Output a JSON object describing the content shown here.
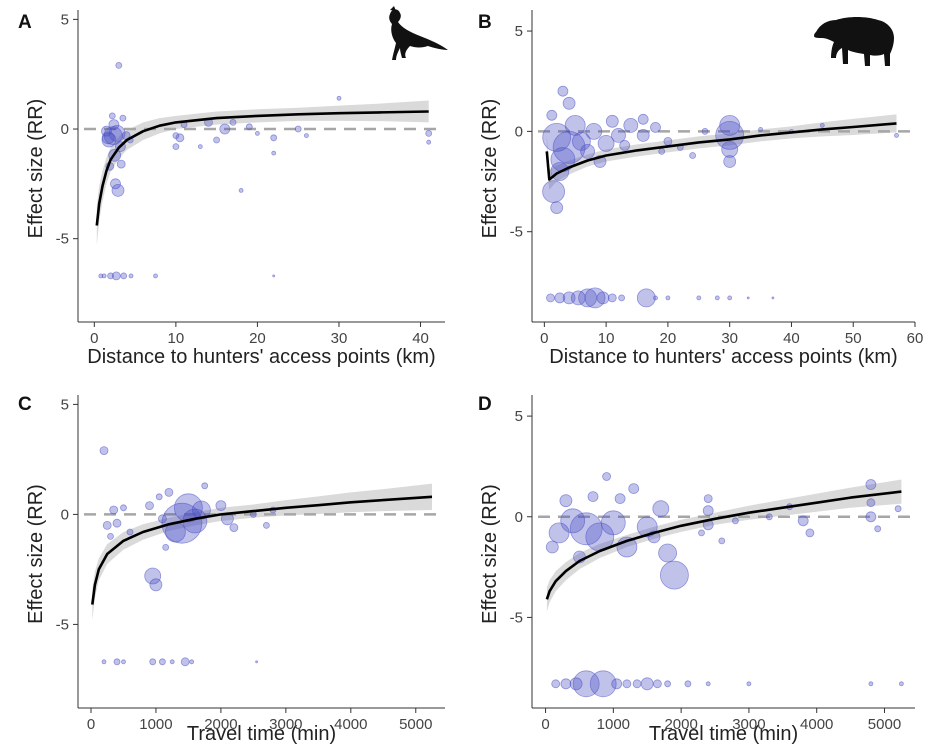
{
  "figure": {
    "colors": {
      "points": "#4b4fc4",
      "fit": "#000000",
      "ci_band": "#d3d3d3",
      "reference": "#a6a6a6"
    },
    "icons": {
      "bird": "curassow-silhouette-icon",
      "tapir": "tapir-silhouette-icon"
    }
  },
  "chart_data": [
    {
      "panel": "A",
      "type": "scatter",
      "icon": "curassow-silhouette-icon",
      "xlabel": "Distance to hunters' access points (km)",
      "ylabel": "Effect size (RR)",
      "xlim": [
        -2,
        43
      ],
      "ylim": [
        -8.8,
        5.2
      ],
      "xticks": [
        0,
        10,
        20,
        30,
        40
      ],
      "yticks": [
        5,
        0,
        -5
      ],
      "grid": false,
      "reference_line_y": 0,
      "fit": [
        [
          0.3,
          -4.4
        ],
        [
          0.6,
          -3.4
        ],
        [
          1,
          -2.6
        ],
        [
          1.5,
          -1.9
        ],
        [
          2,
          -1.4
        ],
        [
          3,
          -0.85
        ],
        [
          4,
          -0.5
        ],
        [
          6,
          -0.1
        ],
        [
          8,
          0.15
        ],
        [
          10,
          0.3
        ],
        [
          15,
          0.5
        ],
        [
          20,
          0.6
        ],
        [
          25,
          0.67
        ],
        [
          30,
          0.72
        ],
        [
          35,
          0.76
        ],
        [
          41,
          0.8
        ]
      ],
      "ci_halfwidth": [
        0.9,
        0.8,
        0.7,
        0.6,
        0.55,
        0.5,
        0.45,
        0.4,
        0.35,
        0.3,
        0.3,
        0.3,
        0.3,
        0.35,
        0.4,
        0.5
      ],
      "points": [
        [
          2.3,
          -0.3,
          9
        ],
        [
          1.8,
          -0.5,
          7
        ],
        [
          2.8,
          -0.2,
          8
        ],
        [
          2.5,
          -1.2,
          6
        ],
        [
          3.2,
          -0.8,
          5
        ],
        [
          1.5,
          -0.1,
          5
        ],
        [
          2.9,
          -2.8,
          6
        ],
        [
          2.6,
          -2.5,
          5
        ],
        [
          3.0,
          2.9,
          3
        ],
        [
          2.2,
          0.6,
          3
        ],
        [
          3.5,
          0.5,
          3
        ],
        [
          1.9,
          -1.7,
          4
        ],
        [
          2.0,
          -6.7,
          3
        ],
        [
          2.7,
          -6.7,
          4
        ],
        [
          3.6,
          -6.7,
          3
        ],
        [
          1.2,
          -6.7,
          2
        ],
        [
          0.8,
          -6.7,
          2
        ],
        [
          4.5,
          -6.7,
          2
        ],
        [
          7.5,
          -6.7,
          2
        ],
        [
          3.9,
          -0.3,
          4
        ],
        [
          4.4,
          -0.5,
          3
        ],
        [
          1.7,
          -0.4,
          6
        ],
        [
          2.4,
          0.2,
          5
        ],
        [
          3.3,
          -1.6,
          4
        ],
        [
          10,
          -0.3,
          3
        ],
        [
          10,
          -0.8,
          3
        ],
        [
          10.5,
          -0.4,
          4
        ],
        [
          11,
          0.2,
          3
        ],
        [
          14,
          0.3,
          4
        ],
        [
          15,
          -0.5,
          3
        ],
        [
          16,
          0.0,
          5
        ],
        [
          19,
          0.1,
          3
        ],
        [
          22,
          -0.4,
          3
        ],
        [
          22,
          -1.1,
          2
        ],
        [
          22,
          -6.7,
          1
        ],
        [
          25,
          0.0,
          3
        ],
        [
          26,
          -0.3,
          2
        ],
        [
          30,
          1.4,
          2
        ],
        [
          41,
          -0.2,
          3
        ],
        [
          41,
          -0.6,
          2
        ],
        [
          20,
          -0.2,
          2
        ],
        [
          18,
          -2.8,
          2
        ],
        [
          13,
          -0.8,
          2
        ],
        [
          17,
          0.3,
          3
        ]
      ]
    },
    {
      "panel": "B",
      "type": "scatter",
      "icon": "tapir-silhouette-icon",
      "xlabel": "Distance to hunters' access points (km)",
      "ylabel": "Effect size (RR)",
      "xlim": [
        -2,
        60
      ],
      "ylim": [
        -9.5,
        5.8
      ],
      "xticks": [
        0,
        10,
        20,
        30,
        40,
        50,
        60
      ],
      "yticks": [
        5,
        0,
        -5
      ],
      "grid": false,
      "reference_line_y": 0,
      "fit": [
        [
          0.4,
          -1.0
        ],
        [
          0.8,
          -2.4
        ],
        [
          2,
          -2.1
        ],
        [
          4,
          -1.8
        ],
        [
          7,
          -1.45
        ],
        [
          10,
          -1.2
        ],
        [
          15,
          -0.95
        ],
        [
          20,
          -0.75
        ],
        [
          25,
          -0.55
        ],
        [
          30,
          -0.4
        ],
        [
          35,
          -0.2
        ],
        [
          40,
          -0.05
        ],
        [
          45,
          0.1
        ],
        [
          50,
          0.22
        ],
        [
          57,
          0.4
        ]
      ],
      "ci_halfwidth": [
        0.8,
        0.5,
        0.4,
        0.35,
        0.3,
        0.3,
        0.3,
        0.3,
        0.3,
        0.3,
        0.3,
        0.3,
        0.35,
        0.4,
        0.45
      ],
      "points": [
        [
          2,
          -0.3,
          14
        ],
        [
          4,
          -0.8,
          16
        ],
        [
          3,
          -1.4,
          12
        ],
        [
          5,
          0.3,
          10
        ],
        [
          2.5,
          -2.0,
          9
        ],
        [
          1.5,
          -3.0,
          11
        ],
        [
          6,
          -0.5,
          9
        ],
        [
          8,
          0.0,
          8
        ],
        [
          10,
          -0.6,
          8
        ],
        [
          12,
          -0.2,
          7
        ],
        [
          14,
          0.3,
          7
        ],
        [
          16,
          -0.2,
          6
        ],
        [
          4,
          1.4,
          6
        ],
        [
          3,
          2.0,
          5
        ],
        [
          1.2,
          0.8,
          5
        ],
        [
          2,
          -3.8,
          6
        ],
        [
          7,
          -1.0,
          7
        ],
        [
          9,
          -1.5,
          6
        ],
        [
          11,
          0.5,
          6
        ],
        [
          13,
          -0.7,
          5
        ],
        [
          30,
          -0.2,
          14
        ],
        [
          30,
          0.3,
          10
        ],
        [
          30,
          -0.9,
          8
        ],
        [
          30,
          -1.5,
          6
        ],
        [
          22,
          -0.8,
          3
        ],
        [
          24,
          -1.2,
          3
        ],
        [
          26,
          0.0,
          3
        ],
        [
          35,
          0.1,
          2
        ],
        [
          40,
          0.0,
          2
        ],
        [
          45,
          0.3,
          2
        ],
        [
          57,
          -0.2,
          2
        ],
        [
          20,
          -0.5,
          4
        ],
        [
          18,
          0.2,
          5
        ],
        [
          16,
          0.6,
          5
        ],
        [
          19,
          -1.0,
          3
        ],
        [
          1,
          -8.3,
          4
        ],
        [
          2.5,
          -8.3,
          5
        ],
        [
          4,
          -8.3,
          6
        ],
        [
          5.5,
          -8.3,
          7
        ],
        [
          7,
          -8.3,
          9
        ],
        [
          8.2,
          -8.3,
          10
        ],
        [
          9.5,
          -8.3,
          6
        ],
        [
          11,
          -8.3,
          4
        ],
        [
          12.5,
          -8.3,
          3
        ],
        [
          16.5,
          -8.3,
          9
        ],
        [
          18,
          -8.3,
          2
        ],
        [
          20,
          -8.3,
          2
        ],
        [
          25,
          -8.3,
          2
        ],
        [
          28,
          -8.3,
          2
        ],
        [
          30,
          -8.3,
          2
        ],
        [
          33,
          -8.3,
          1
        ],
        [
          37,
          -8.3,
          1
        ]
      ]
    },
    {
      "panel": "C",
      "type": "scatter",
      "xlabel": "Travel time (min)",
      "ylabel": "Effect size (RR)",
      "xlim": [
        -200,
        5450
      ],
      "ylim": [
        -8.8,
        5.2
      ],
      "xticks": [
        0,
        1000,
        2000,
        3000,
        4000,
        5000
      ],
      "yticks": [
        5,
        0,
        -5
      ],
      "grid": false,
      "reference_line_y": 0,
      "fit": [
        [
          20,
          -4.1
        ],
        [
          60,
          -3.2
        ],
        [
          120,
          -2.5
        ],
        [
          250,
          -1.8
        ],
        [
          500,
          -1.2
        ],
        [
          800,
          -0.8
        ],
        [
          1200,
          -0.45
        ],
        [
          1600,
          -0.2
        ],
        [
          2000,
          0.0
        ],
        [
          2500,
          0.15
        ],
        [
          3000,
          0.3
        ],
        [
          3500,
          0.42
        ],
        [
          4000,
          0.55
        ],
        [
          4500,
          0.65
        ],
        [
          5250,
          0.8
        ]
      ],
      "ci_halfwidth": [
        0.7,
        0.6,
        0.5,
        0.45,
        0.4,
        0.35,
        0.3,
        0.3,
        0.3,
        0.3,
        0.35,
        0.4,
        0.45,
        0.5,
        0.6
      ],
      "points": [
        [
          1400,
          -0.4,
          20
        ],
        [
          1500,
          0.3,
          14
        ],
        [
          1600,
          -0.3,
          12
        ],
        [
          1300,
          -0.8,
          10
        ],
        [
          1700,
          0.2,
          9
        ],
        [
          950,
          -2.8,
          8
        ],
        [
          1000,
          -3.2,
          6
        ],
        [
          200,
          2.9,
          4
        ],
        [
          250,
          -0.5,
          4
        ],
        [
          350,
          0.2,
          4
        ],
        [
          400,
          -0.4,
          4
        ],
        [
          500,
          0.3,
          3
        ],
        [
          900,
          0.4,
          4
        ],
        [
          1100,
          -0.2,
          4
        ],
        [
          1200,
          1.0,
          4
        ],
        [
          1750,
          1.3,
          3
        ],
        [
          2000,
          0.4,
          5
        ],
        [
          2100,
          -0.2,
          6
        ],
        [
          2200,
          -0.6,
          4
        ],
        [
          2500,
          0.0,
          3
        ],
        [
          2700,
          -0.5,
          3
        ],
        [
          2800,
          0.2,
          3
        ],
        [
          1050,
          0.8,
          3
        ],
        [
          1150,
          -1.5,
          3
        ],
        [
          600,
          -0.8,
          3
        ],
        [
          300,
          -1.0,
          3
        ],
        [
          200,
          -6.7,
          2
        ],
        [
          400,
          -6.7,
          3
        ],
        [
          500,
          -6.7,
          2
        ],
        [
          950,
          -6.7,
          3
        ],
        [
          1100,
          -6.7,
          3
        ],
        [
          1250,
          -6.7,
          2
        ],
        [
          1450,
          -6.7,
          4
        ],
        [
          1550,
          -6.7,
          2
        ],
        [
          2550,
          -6.7,
          1
        ]
      ]
    },
    {
      "panel": "D",
      "type": "scatter",
      "xlabel": "Travel time (min)",
      "ylabel": "Effect size (RR)",
      "xlim": [
        -200,
        5450
      ],
      "ylim": [
        -9.5,
        5.8
      ],
      "xticks": [
        0,
        1000,
        2000,
        3000,
        4000,
        5000
      ],
      "yticks": [
        5,
        0,
        -5
      ],
      "grid": false,
      "reference_line_y": 0,
      "fit": [
        [
          20,
          -4.1
        ],
        [
          60,
          -3.7
        ],
        [
          150,
          -3.2
        ],
        [
          300,
          -2.7
        ],
        [
          500,
          -2.2
        ],
        [
          800,
          -1.7
        ],
        [
          1200,
          -1.2
        ],
        [
          1600,
          -0.8
        ],
        [
          2000,
          -0.45
        ],
        [
          2500,
          -0.1
        ],
        [
          3000,
          0.2
        ],
        [
          3500,
          0.45
        ],
        [
          4000,
          0.7
        ],
        [
          4500,
          0.95
        ],
        [
          5250,
          1.25
        ]
      ],
      "ci_halfwidth": [
        0.6,
        0.55,
        0.5,
        0.45,
        0.4,
        0.35,
        0.3,
        0.3,
        0.3,
        0.3,
        0.35,
        0.4,
        0.45,
        0.5,
        0.6
      ],
      "points": [
        [
          600,
          -0.6,
          16
        ],
        [
          800,
          -1.0,
          14
        ],
        [
          1000,
          -0.3,
          12
        ],
        [
          400,
          -0.2,
          12
        ],
        [
          200,
          -0.8,
          10
        ],
        [
          1200,
          -1.5,
          10
        ],
        [
          1500,
          -0.5,
          10
        ],
        [
          1800,
          -1.8,
          9
        ],
        [
          1900,
          -2.9,
          14
        ],
        [
          1700,
          0.4,
          8
        ],
        [
          300,
          0.8,
          6
        ],
        [
          100,
          -1.5,
          6
        ],
        [
          500,
          -2.0,
          6
        ],
        [
          1100,
          0.9,
          5
        ],
        [
          1300,
          1.4,
          5
        ],
        [
          900,
          2.0,
          4
        ],
        [
          700,
          1.0,
          5
        ],
        [
          1600,
          -1.0,
          6
        ],
        [
          2400,
          0.3,
          5
        ],
        [
          2400,
          -0.4,
          5
        ],
        [
          2400,
          0.9,
          4
        ],
        [
          2300,
          -0.8,
          3
        ],
        [
          2800,
          -0.2,
          3
        ],
        [
          3300,
          0.0,
          3
        ],
        [
          3800,
          -0.2,
          5
        ],
        [
          3900,
          -0.8,
          4
        ],
        [
          4800,
          0.0,
          5
        ],
        [
          4800,
          0.7,
          4
        ],
        [
          4800,
          1.6,
          5
        ],
        [
          4900,
          -0.6,
          3
        ],
        [
          5200,
          0.4,
          3
        ],
        [
          3600,
          0.5,
          3
        ],
        [
          2600,
          -1.2,
          3
        ],
        [
          150,
          -8.3,
          4
        ],
        [
          300,
          -8.3,
          5
        ],
        [
          450,
          -8.3,
          6
        ],
        [
          600,
          -8.3,
          13
        ],
        [
          850,
          -8.3,
          13
        ],
        [
          1050,
          -8.3,
          5
        ],
        [
          1200,
          -8.3,
          4
        ],
        [
          1350,
          -8.3,
          4
        ],
        [
          1500,
          -8.3,
          6
        ],
        [
          1650,
          -8.3,
          4
        ],
        [
          1800,
          -8.3,
          3
        ],
        [
          2100,
          -8.3,
          3
        ],
        [
          2400,
          -8.3,
          2
        ],
        [
          3000,
          -8.3,
          2
        ],
        [
          4800,
          -8.3,
          2
        ],
        [
          5250,
          -8.3,
          2
        ]
      ]
    }
  ]
}
